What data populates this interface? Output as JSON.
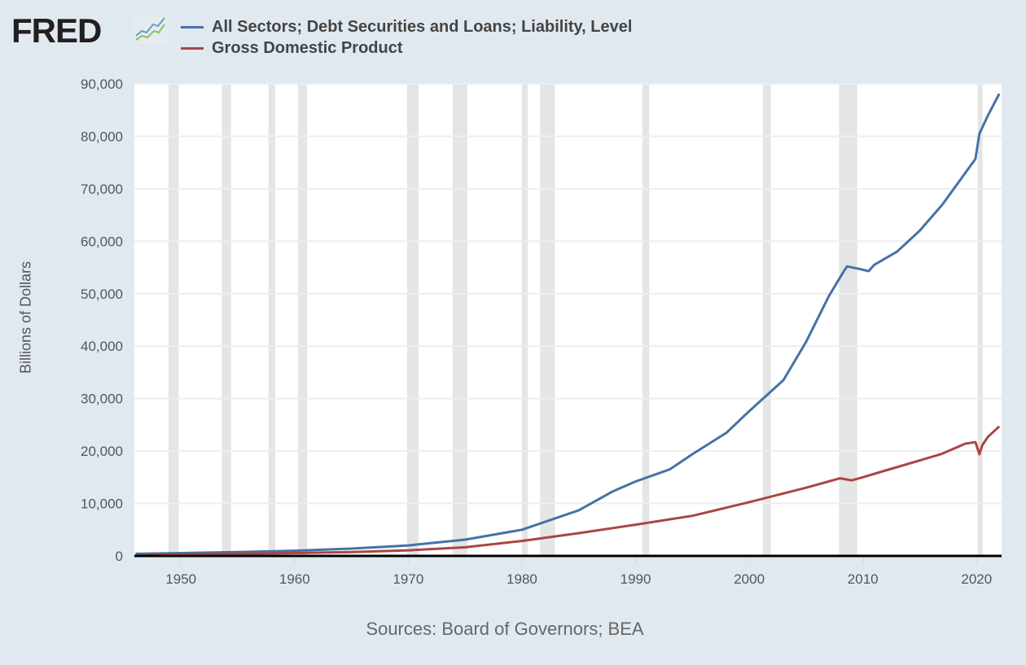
{
  "logo": {
    "text": "FRED"
  },
  "chart_data": {
    "type": "line",
    "title": "",
    "xlabel": "",
    "ylabel": "Billions of Dollars",
    "source": "Sources: Board of Governors; BEA",
    "xlim": [
      1945.9,
      2022.2
    ],
    "ylim": [
      0,
      90000
    ],
    "xticks": [
      1950,
      1960,
      1970,
      1980,
      1990,
      2000,
      2010,
      2020
    ],
    "yticks": [
      0,
      10000,
      20000,
      30000,
      40000,
      50000,
      60000,
      70000,
      80000,
      90000
    ],
    "ytick_labels": [
      "0",
      "10,000",
      "20,000",
      "30,000",
      "40,000",
      "50,000",
      "60,000",
      "70,000",
      "80,000",
      "90,000"
    ],
    "grid": true,
    "legend_position": "top-left",
    "recessions": [
      [
        1948.9,
        1949.8
      ],
      [
        1953.6,
        1954.4
      ],
      [
        1957.7,
        1958.3
      ],
      [
        1960.3,
        1961.1
      ],
      [
        1969.9,
        1970.9
      ],
      [
        1973.9,
        1975.2
      ],
      [
        1980.0,
        1980.5
      ],
      [
        1981.6,
        1982.9
      ],
      [
        1990.6,
        1991.2
      ],
      [
        2001.2,
        2001.9
      ],
      [
        2007.9,
        2009.5
      ],
      [
        2020.1,
        2020.4
      ]
    ],
    "series": [
      {
        "name": "All Sectors; Debt Securities and Loans; Liability, Level",
        "color": "#4572a7",
        "x": [
          1946,
          1950,
          1955,
          1960,
          1965,
          1970,
          1975,
          1980,
          1985,
          1988,
          1990,
          1993,
          1995,
          1998,
          2000,
          2003,
          2005,
          2007,
          2008.3,
          2008.6,
          2009.5,
          2010.5,
          2011,
          2013,
          2015,
          2017,
          2019,
          2019.9,
          2020.25,
          2021,
          2022
        ],
        "y": [
          400,
          550,
          750,
          1000,
          1400,
          2000,
          3100,
          5000,
          8700,
          12300,
          14200,
          16500,
          19400,
          23500,
          27600,
          33500,
          40800,
          49500,
          54200,
          55200,
          54800,
          54300,
          55500,
          58000,
          62000,
          67000,
          73000,
          75700,
          80500,
          84000,
          88100
        ]
      },
      {
        "name": "Gross Domestic Product",
        "color": "#aa4643",
        "x": [
          1947,
          1950,
          1955,
          1960,
          1965,
          1970,
          1975,
          1980,
          1985,
          1990,
          1995,
          2000,
          2005,
          2008,
          2009,
          2010,
          2012,
          2015,
          2017,
          2019,
          2019.9,
          2020.25,
          2020.5,
          2021,
          2022
        ],
        "y": [
          240,
          300,
          420,
          540,
          740,
          1070,
          1650,
          2860,
          4350,
          5960,
          7650,
          10250,
          13000,
          14800,
          14400,
          15000,
          16300,
          18200,
          19500,
          21400,
          21700,
          19400,
          21100,
          22700,
          24700
        ]
      }
    ]
  }
}
